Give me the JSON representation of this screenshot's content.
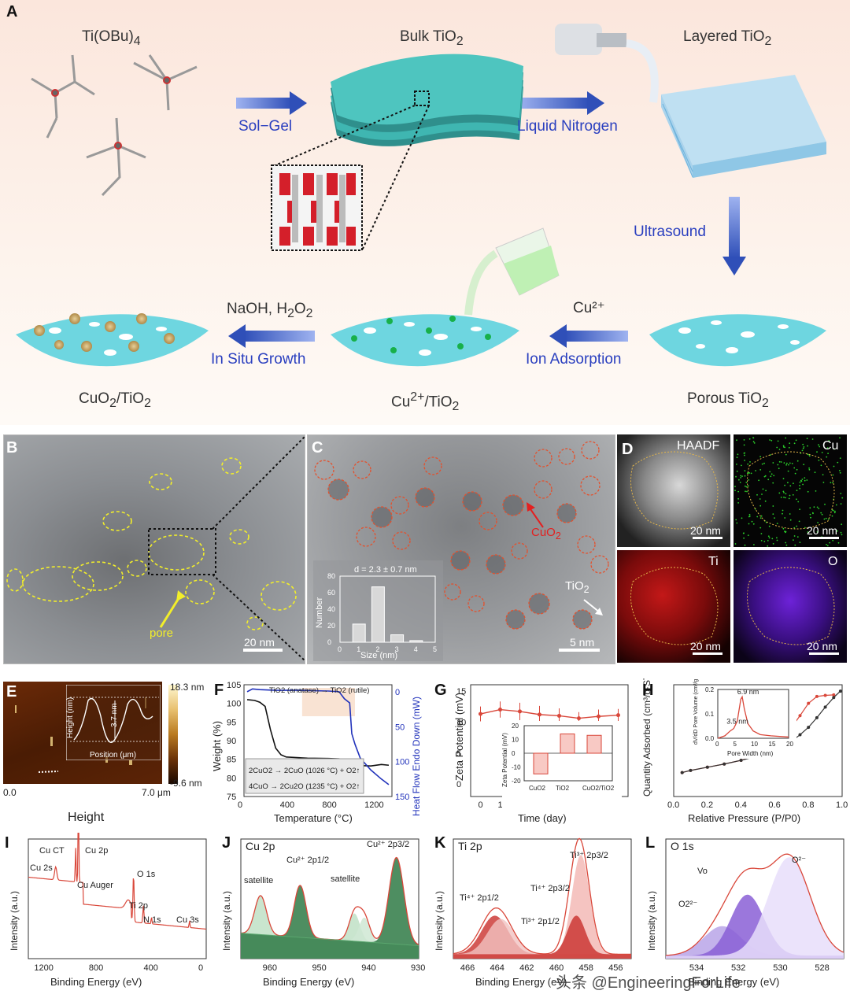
{
  "panelA": {
    "label": "A",
    "precursor": "Ti(OBu)4",
    "bulk": "Bulk TiO2",
    "layered": "Layered TiO2",
    "porous": "Porous TiO2",
    "cu_ads": "Cu²⁺/TiO2",
    "cuo2": "CuO2/TiO2",
    "sol_gel": "Sol−Gel",
    "liquid_n2": "Liquid Nitrogen",
    "ultrasound": "Ultrasound",
    "cu2plus": "Cu²⁺",
    "ion_ads": "Ion Adsorption",
    "naoh": "NaOH, H2O2",
    "in_situ": "In Situ Growth"
  },
  "panelB": {
    "label": "B",
    "pore": "pore",
    "scale": "20 nm"
  },
  "panelC": {
    "label": "C",
    "cuo2": "CuO2",
    "tio2": "TiO2",
    "scale": "5 nm",
    "inset": {
      "title": "d = 2.3 ± 0.7 nm",
      "xlabel": "Size (nm)",
      "ylabel": "Number"
    }
  },
  "panelD": {
    "label": "D",
    "haadf": "HAADF",
    "cu": "Cu",
    "ti": "Ti",
    "o": "O",
    "scale": "20 nm"
  },
  "panelE": {
    "label": "E",
    "top": "18.3 nm",
    "bottom": "-9.6 nm",
    "x0": "0.0",
    "x1": "7.0 μm",
    "caption": "Height",
    "inset_y": "Height (nm)",
    "inset_x": "Position (μm)",
    "inset_val": "3.7 nm"
  },
  "panelF": {
    "label": "F",
    "anno": "TiO2 (anatase) → TiO2 (rutile)",
    "eq1": "2CuO2 → 2CuO (1026 °C) + O2↑",
    "eq2": "4CuO → 2Cu2O (1235 °C) + O2↑"
  },
  "panelG": {
    "label": "G"
  },
  "panelH": {
    "label": "H",
    "inset_y": "dV/dD Pore Volume (cm³/g·nm)",
    "inset_x": "Pore Width (nm)",
    "p1": "3.5 nm",
    "p2": "6.9 nm"
  },
  "panelI": {
    "label": "I",
    "cu2s": "Cu 2s",
    "cuct": "Cu CT",
    "cu2p": "Cu 2p",
    "auger": "Cu Auger",
    "o1s": "O 1s",
    "ti2p": "Ti 2p",
    "n1s": "N 1s",
    "cu3s": "Cu 3s"
  },
  "panelJ": {
    "label": "J",
    "title": "Cu 2p",
    "sat1": "satellite",
    "p12": "Cu²⁺ 2p1/2",
    "sat2": "satellite",
    "p32": "Cu²⁺ 2p3/2"
  },
  "panelK": {
    "label": "K",
    "title": "Ti 2p",
    "a": "Ti⁴⁺ 2p1/2",
    "b": "Ti³⁺ 2p1/2",
    "c": "Ti³⁺ 2p3/2",
    "d": "Ti⁴⁺ 2p3/2"
  },
  "panelL": {
    "label": "L",
    "title": "O 1s",
    "o22": "O2²⁻",
    "vo": "Vo",
    "o2": "O²⁻"
  },
  "watermark": "头条 @EngineeringForLife",
  "chart_data": [
    {
      "panel": "C-inset",
      "type": "bar",
      "title": "d = 2.3 ± 0.7 nm",
      "xlabel": "Size (nm)",
      "ylabel": "Number",
      "categories": [
        "1",
        "2",
        "3",
        "4"
      ],
      "values": [
        22,
        67,
        9,
        2
      ],
      "ylim": [
        0,
        80
      ],
      "xticks": [
        "0",
        "1",
        "2",
        "3",
        "4",
        "5"
      ],
      "yticks": [
        "0",
        "20",
        "40",
        "60",
        "80"
      ]
    },
    {
      "panel": "F",
      "type": "line",
      "xlabel": "Temperature (°C)",
      "ylabel": "Weight (%)",
      "y2label": "Heat Flow Endo Down (mW)",
      "xlim": [
        0,
        1400
      ],
      "ylim": [
        75,
        105
      ],
      "y2lim": [
        150,
        -10
      ],
      "xticks": [
        "0",
        "400",
        "800",
        "1200"
      ],
      "yticks": [
        "75",
        "80",
        "85",
        "90",
        "95",
        "100",
        "105"
      ],
      "y2ticks": [
        "0",
        "50",
        "100",
        "150"
      ],
      "series": [
        {
          "name": "Weight",
          "color": "#111111",
          "x": [
            30,
            100,
            150,
            200,
            250,
            300,
            350,
            400,
            600,
            800,
            900,
            930,
            1000,
            1100,
            1200,
            1300,
            1370
          ],
          "y": [
            101,
            100.8,
            100.3,
            99.2,
            93,
            88,
            86.2,
            85.6,
            85.3,
            85.2,
            85.1,
            83.5,
            83.4,
            83.3,
            83.2,
            83.6,
            83.4
          ]
        },
        {
          "name": "Heat Flow",
          "color": "#2233bb",
          "axis": "y2",
          "x": [
            30,
            80,
            150,
            300,
            500,
            800,
            900,
            950,
            1000,
            1020,
            1050,
            1100,
            1200,
            1300,
            1370
          ],
          "y": [
            0,
            -4,
            -3,
            -2,
            -2,
            -1,
            0,
            10,
            16,
            60,
            75,
            95,
            112,
            125,
            133
          ]
        }
      ]
    },
    {
      "panel": "G",
      "type": "line",
      "xlabel": "Time (day)",
      "ylabel": "Zeta Potential (mV)",
      "xlim": [
        -0.5,
        7.5
      ],
      "ylim": [
        -2,
        16
      ],
      "xticks": [
        "0",
        "1",
        "2",
        "3",
        "4",
        "5",
        "6",
        "7"
      ],
      "yticks": [
        "0",
        "5",
        "10",
        "15"
      ],
      "series": [
        {
          "name": "CuO2/TiO2",
          "color": "#d9473a",
          "x": [
            0,
            1,
            2,
            3,
            4,
            5,
            6,
            7
          ],
          "y": [
            11.3,
            12,
            11.7,
            11.2,
            11,
            10.6,
            10.9,
            11.1
          ],
          "err": [
            1.2,
            1.3,
            1.4,
            1.4,
            1.2,
            1,
            1.1,
            1
          ]
        }
      ]
    },
    {
      "panel": "G-inset",
      "type": "bar",
      "ylabel": "Zeta Potential (mV)",
      "categories": [
        "CuO2",
        "TiO2",
        "CuO2/TiO2"
      ],
      "values": [
        -15,
        14,
        13
      ],
      "ylim": [
        -20,
        20
      ],
      "yticks": [
        "-20",
        "-10",
        "0",
        "10",
        "20"
      ]
    },
    {
      "panel": "H",
      "type": "line",
      "xlabel": "Relative Pressure (P/P0)",
      "ylabel": "Quantity Adsorbed (cm³/g·STP)",
      "xlim": [
        0,
        1
      ],
      "xticks": [
        "0.0",
        "0.2",
        "0.4",
        "0.6",
        "0.8",
        "1.0"
      ],
      "series": [
        {
          "name": "adsorption",
          "color": "#d9473a",
          "x": [
            0.05,
            0.1,
            0.2,
            0.3,
            0.4,
            0.5,
            0.55,
            0.6,
            0.65,
            0.7,
            0.75,
            0.8,
            0.85,
            0.9,
            0.95
          ],
          "y": [
            45,
            49,
            55,
            61,
            68,
            78,
            86,
            96,
            112,
            130,
            152,
            175,
            188,
            190,
            191
          ]
        },
        {
          "name": "desorption",
          "color": "#333333",
          "x": [
            0.05,
            0.1,
            0.2,
            0.3,
            0.4,
            0.5,
            0.55,
            0.6,
            0.65,
            0.7,
            0.75,
            0.8,
            0.85,
            0.9,
            0.95,
            0.99
          ],
          "y": [
            45,
            49,
            55,
            61,
            68,
            76,
            82,
            88,
            95,
            104,
            116,
            130,
            148,
            168,
            186,
            198
          ]
        }
      ]
    },
    {
      "panel": "H-inset",
      "type": "line",
      "xlabel": "Pore Width (nm)",
      "ylabel": "dV/dD Pore Volume (cm³/g·nm)",
      "xlim": [
        0,
        20
      ],
      "ylim": [
        0,
        0.2
      ],
      "xticks": [
        "0",
        "5",
        "10",
        "15",
        "20"
      ],
      "yticks": [
        "0.0",
        "0.1",
        "0.2"
      ],
      "series": [
        {
          "name": "PSD",
          "color": "#d9473a",
          "x": [
            0,
            2,
            3.5,
            4.5,
            5.5,
            6.5,
            6.9,
            7.5,
            8.5,
            10,
            12,
            15,
            20
          ],
          "y": [
            0,
            0.01,
            0.03,
            0.04,
            0.07,
            0.16,
            0.17,
            0.12,
            0.06,
            0.03,
            0.015,
            0.01,
            0.005
          ]
        }
      ]
    },
    {
      "panel": "I",
      "type": "line",
      "xlabel": "Binding Energy (eV)",
      "ylabel": "Intensity (a.u.)",
      "xlim": [
        1300,
        0
      ],
      "xticks": [
        "1200",
        "800",
        "400",
        "0"
      ]
    },
    {
      "panel": "J",
      "type": "line",
      "xlabel": "Binding Energy (eV)",
      "ylabel": "Intensity (a.u.)",
      "xlim": [
        966,
        930
      ],
      "xticks": [
        "960",
        "950",
        "940",
        "930"
      ]
    },
    {
      "panel": "K",
      "type": "line",
      "xlabel": "Binding Energy (eV)",
      "ylabel": "Intensity (a.u.)",
      "xlim": [
        467,
        455
      ],
      "xticks": [
        "466",
        "464",
        "462",
        "460",
        "458",
        "456"
      ]
    },
    {
      "panel": "L",
      "type": "line",
      "xlabel": "Binding Energy (eV)",
      "ylabel": "Intensity (a.u.)",
      "xlim": [
        535.5,
        527
      ],
      "xticks": [
        "534",
        "532",
        "530",
        "528"
      ]
    }
  ]
}
